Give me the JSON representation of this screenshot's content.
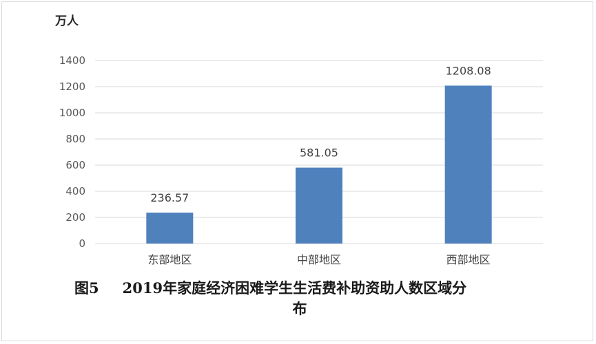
{
  "chart_data": {
    "type": "bar",
    "categories": [
      "东部地区",
      "中部地区",
      "西部地区"
    ],
    "values": [
      236.57,
      581.05,
      1208.08
    ],
    "data_labels": [
      "236.57",
      "581.05",
      "1208.08"
    ],
    "ylabel": "万人",
    "ylim": [
      0,
      1400
    ],
    "yticks": [
      0,
      200,
      400,
      600,
      800,
      1000,
      1200,
      1400
    ],
    "grid": true,
    "bar_color": "#4f81bd",
    "grid_color": "#d9d9d9"
  },
  "caption": {
    "figure_number": "图5",
    "title_line1": "2019年家庭经济困难学生生活费补助资助人数区域分",
    "title_line2": "布"
  }
}
